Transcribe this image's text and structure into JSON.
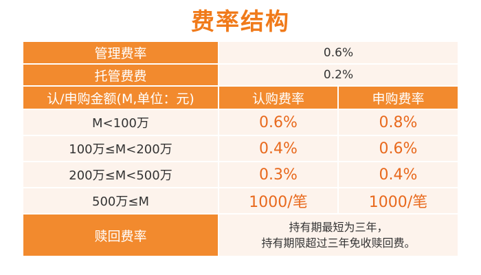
{
  "title": "费率结构",
  "management_fee": {
    "label": "管理费率",
    "value": "0.6%"
  },
  "custody_fee": {
    "label": "托管费费",
    "value": "0.2%"
  },
  "header": {
    "amount_label": "认/申购金额(M,单位：元)",
    "subscription_label": "认购费率",
    "purchase_label": "申购费率"
  },
  "tiers": [
    {
      "range": "M<100万",
      "subscription": "0.6%",
      "purchase": "0.8%"
    },
    {
      "range": "100万≤M<200万",
      "subscription": "0.4%",
      "purchase": "0.6%"
    },
    {
      "range": "200万≤M<500万",
      "subscription": "0.3%",
      "purchase": "0.4%"
    },
    {
      "range": "500万≤M",
      "subscription": "1000/笔",
      "purchase": "1000/笔"
    }
  ],
  "redemption": {
    "label": "赎回费率",
    "line1": "持有期最短为三年，",
    "line2": "持有期限超过三年免收赎回费。"
  },
  "colors": {
    "accent": "#f28a2e",
    "title": "#f07a1a",
    "value": "#e8691d",
    "cell_background": "#fdf3ec"
  }
}
